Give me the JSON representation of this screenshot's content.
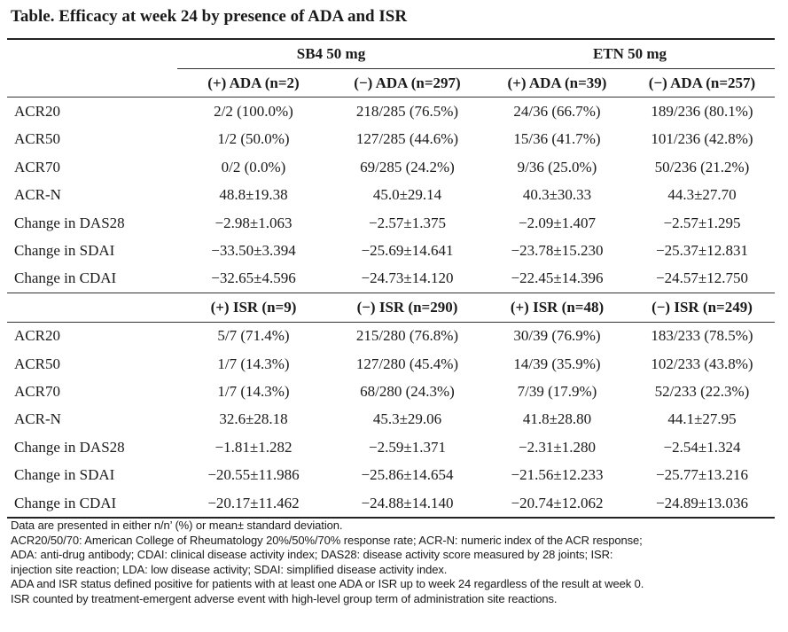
{
  "title": "Table. Efficacy at week 24 by presence of ADA and ISR",
  "groups": [
    "SB4 50 mg",
    "ETN 50 mg"
  ],
  "ada_header": [
    "(+) ADA (n=2)",
    "(−) ADA (n=297)",
    "(+) ADA (n=39)",
    "(−) ADA (n=257)"
  ],
  "ada_rows": [
    {
      "label": "ACR20",
      "cells": [
        "2/2 (100.0%)",
        "218/285 (76.5%)",
        "24/36 (66.7%)",
        "189/236 (80.1%)"
      ]
    },
    {
      "label": "ACR50",
      "cells": [
        "1/2 (50.0%)",
        "127/285 (44.6%)",
        "15/36 (41.7%)",
        "101/236 (42.8%)"
      ]
    },
    {
      "label": "ACR70",
      "cells": [
        "0/2 (0.0%)",
        "69/285 (24.2%)",
        "9/36 (25.0%)",
        "50/236 (21.2%)"
      ]
    },
    {
      "label": "ACR-N",
      "cells": [
        "48.8±19.38",
        "45.0±29.14",
        "40.3±30.33",
        "44.3±27.70"
      ]
    },
    {
      "label": "Change in DAS28",
      "cells": [
        "−2.98±1.063",
        "−2.57±1.375",
        "−2.09±1.407",
        "−2.57±1.295"
      ]
    },
    {
      "label": "Change in SDAI",
      "cells": [
        "−33.50±3.394",
        "−25.69±14.641",
        "−23.78±15.230",
        "−25.37±12.831"
      ]
    },
    {
      "label": "Change in CDAI",
      "cells": [
        "−32.65±4.596",
        "−24.73±14.120",
        "−22.45±14.396",
        "−24.57±12.750"
      ]
    }
  ],
  "isr_header": [
    "(+) ISR (n=9)",
    "(−) ISR (n=290)",
    "(+) ISR (n=48)",
    "(−) ISR (n=249)"
  ],
  "isr_rows": [
    {
      "label": "ACR20",
      "cells": [
        "5/7 (71.4%)",
        "215/280 (76.8%)",
        "30/39 (76.9%)",
        "183/233 (78.5%)"
      ]
    },
    {
      "label": "ACR50",
      "cells": [
        "1/7 (14.3%)",
        "127/280 (45.4%)",
        "14/39 (35.9%)",
        "102/233 (43.8%)"
      ]
    },
    {
      "label": "ACR70",
      "cells": [
        "1/7 (14.3%)",
        "68/280 (24.3%)",
        "7/39 (17.9%)",
        "52/233 (22.3%)"
      ]
    },
    {
      "label": "ACR-N",
      "cells": [
        "32.6±28.18",
        "45.3±29.06",
        "41.8±28.80",
        "44.1±27.95"
      ]
    },
    {
      "label": "Change in DAS28",
      "cells": [
        "−1.81±1.282",
        "−2.59±1.371",
        "−2.31±1.280",
        "−2.54±1.324"
      ]
    },
    {
      "label": "Change in SDAI",
      "cells": [
        "−20.55±11.986",
        "−25.86±14.654",
        "−21.56±12.233",
        "−25.77±13.216"
      ]
    },
    {
      "label": "Change in CDAI",
      "cells": [
        "−20.17±11.462",
        "−24.88±14.140",
        "−20.74±12.062",
        "−24.89±13.036"
      ]
    }
  ],
  "footnotes": [
    "Data are presented in either n/n’ (%) or mean± standard deviation.",
    "ACR20/50/70: American College of Rheumatology 20%/50%/70% response rate; ACR-N: numeric index of the ACR response;",
    "ADA: anti-drug antibody; CDAI: clinical disease activity index; DAS28: disease activity score measured by 28 joints; ISR:",
    "injection site reaction; LDA: low disease activity; SDAI: simplified disease activity index.",
    "ADA and ISR status defined positive for patients with at least one ADA or ISR up to week 24 regardless of the result at week 0.",
    "ISR counted by treatment-emergent adverse event with high-level group term of administration site reactions."
  ]
}
